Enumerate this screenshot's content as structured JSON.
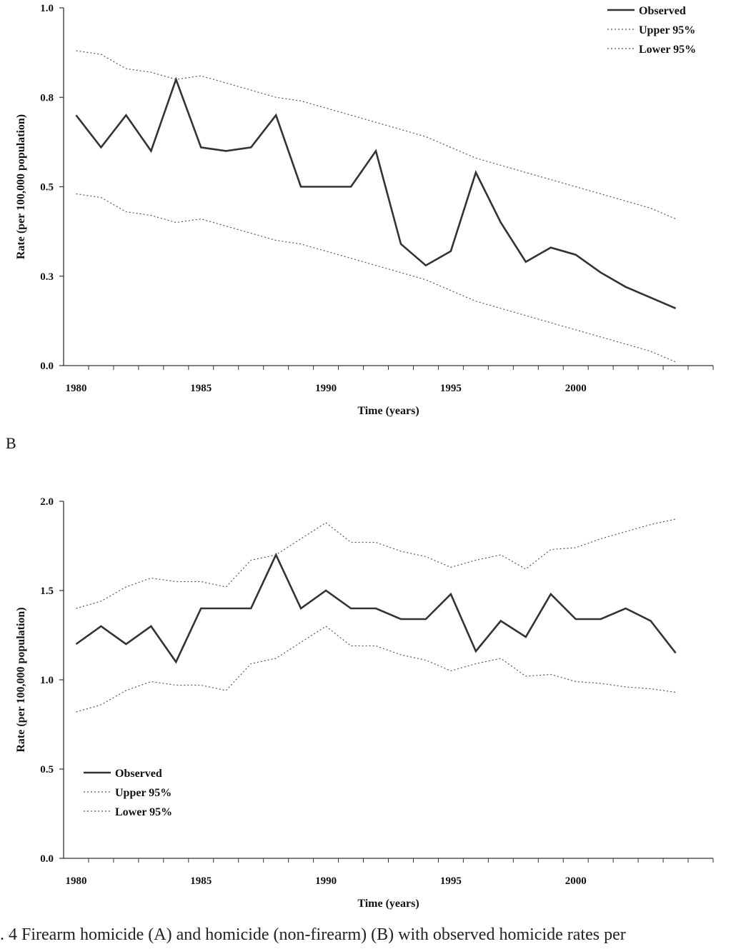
{
  "caption": ". 4   Firearm homicide (A) and homicide (non-firearm) (B) with observed homicide rates per",
  "colors": {
    "observed": "#333333",
    "bounds": "#555555",
    "axis": "#333333"
  },
  "chart_data": [
    {
      "type": "line",
      "panel_label": "",
      "legend_position": "top-right",
      "xlabel": "Time (years)",
      "ylabel": "Rate (per 100,000 population)",
      "xlim": [
        1979.5,
        2005.5
      ],
      "ylim": [
        0.0,
        1.0
      ],
      "x_ticks": [
        1980,
        1985,
        1990,
        1995,
        2000
      ],
      "y_ticks": [
        "0.0",
        "0.3",
        "0.5",
        "0.8",
        "1.0"
      ],
      "y_tick_values": [
        0.0,
        0.25,
        0.5,
        0.75,
        1.0
      ],
      "grid": false,
      "x": [
        1980,
        1981,
        1982,
        1983,
        1984,
        1985,
        1986,
        1987,
        1988,
        1989,
        1990,
        1991,
        1992,
        1993,
        1994,
        1995,
        1996,
        1997,
        1998,
        1999,
        2000,
        2001,
        2002,
        2003,
        2004
      ],
      "series": [
        {
          "name": "Observed",
          "style": "solid",
          "values": [
            0.7,
            0.61,
            0.7,
            0.6,
            0.8,
            0.61,
            0.6,
            0.61,
            0.7,
            0.5,
            0.5,
            0.5,
            0.6,
            0.34,
            0.28,
            0.32,
            0.54,
            0.4,
            0.29,
            0.33,
            0.31,
            0.26,
            0.22,
            0.19,
            0.16
          ]
        },
        {
          "name": "Upper 95%",
          "style": "dotted",
          "values": [
            0.88,
            0.87,
            0.83,
            0.82,
            0.8,
            0.81,
            0.79,
            0.77,
            0.75,
            0.74,
            0.72,
            0.7,
            0.68,
            0.66,
            0.64,
            0.61,
            0.58,
            0.56,
            0.54,
            0.52,
            0.5,
            0.48,
            0.46,
            0.44,
            0.41
          ]
        },
        {
          "name": "Lower 95%",
          "style": "dotted",
          "values": [
            0.48,
            0.47,
            0.43,
            0.42,
            0.4,
            0.41,
            0.39,
            0.37,
            0.35,
            0.34,
            0.32,
            0.3,
            0.28,
            0.26,
            0.24,
            0.21,
            0.18,
            0.16,
            0.14,
            0.12,
            0.1,
            0.08,
            0.06,
            0.04,
            0.01
          ]
        }
      ]
    },
    {
      "type": "line",
      "panel_label": "B",
      "legend_position": "bottom-left",
      "xlabel": "Time (years)",
      "ylabel": "Rate (per 100,000 population)",
      "xlim": [
        1979.5,
        2005.5
      ],
      "ylim": [
        0.0,
        2.0
      ],
      "x_ticks": [
        1980,
        1985,
        1990,
        1995,
        2000
      ],
      "y_ticks": [
        "0.0",
        "0.5",
        "1.0",
        "1.5",
        "2.0"
      ],
      "y_tick_values": [
        0.0,
        0.5,
        1.0,
        1.5,
        2.0
      ],
      "grid": false,
      "x": [
        1980,
        1981,
        1982,
        1983,
        1984,
        1985,
        1986,
        1987,
        1988,
        1989,
        1990,
        1991,
        1992,
        1993,
        1994,
        1995,
        1996,
        1997,
        1998,
        1999,
        2000,
        2001,
        2002,
        2003,
        2004
      ],
      "series": [
        {
          "name": "Observed",
          "style": "solid",
          "values": [
            1.2,
            1.3,
            1.2,
            1.3,
            1.1,
            1.4,
            1.4,
            1.4,
            1.7,
            1.4,
            1.5,
            1.4,
            1.4,
            1.34,
            1.34,
            1.48,
            1.16,
            1.33,
            1.24,
            1.48,
            1.34,
            1.34,
            1.4,
            1.33,
            1.15
          ]
        },
        {
          "name": "Upper 95%",
          "style": "dotted",
          "values": [
            1.4,
            1.44,
            1.52,
            1.57,
            1.55,
            1.55,
            1.52,
            1.67,
            1.7,
            1.79,
            1.88,
            1.77,
            1.77,
            1.72,
            1.69,
            1.63,
            1.67,
            1.7,
            1.62,
            1.73,
            1.74,
            1.79,
            1.83,
            1.87,
            1.9
          ]
        },
        {
          "name": "Lower 95%",
          "style": "dotted",
          "values": [
            0.82,
            0.86,
            0.94,
            0.99,
            0.97,
            0.97,
            0.94,
            1.09,
            1.12,
            1.21,
            1.3,
            1.19,
            1.19,
            1.14,
            1.11,
            1.05,
            1.09,
            1.12,
            1.02,
            1.03,
            0.99,
            0.98,
            0.96,
            0.95,
            0.93
          ]
        }
      ]
    }
  ]
}
